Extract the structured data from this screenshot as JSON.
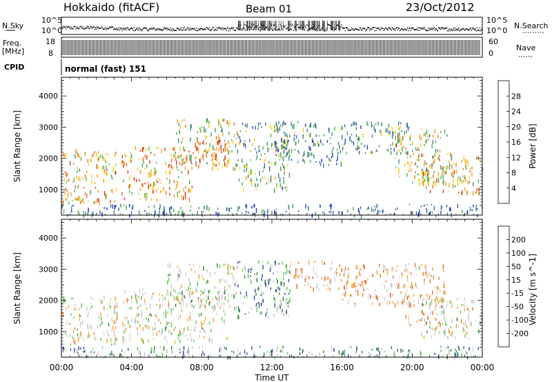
{
  "header": {
    "station": "Hokkaido (fitACF)",
    "beam": "Beam 01",
    "date": "23/Oct/2012"
  },
  "strips": {
    "nsky": {
      "label": "N.Sky",
      "ticks_left": [
        "10^5",
        "10^0"
      ],
      "ticks_right": [
        "10^5",
        "10^0"
      ],
      "right_label": "N.Search"
    },
    "freq": {
      "label_line1": "Freq.",
      "label_line2": "[MHz]",
      "ticks_left": [
        "18",
        "8"
      ],
      "ticks_right": [
        "60",
        "0"
      ],
      "right_label": "Nave"
    },
    "cpid": {
      "label": "CPID",
      "text": "normal (fast) 151"
    }
  },
  "colors": {
    "power": [
      "#0b22d8",
      "#2b48b0",
      "#3f6f9a",
      "#3f8f7a",
      "#4db04d",
      "#f0d020",
      "#f5a524",
      "#f26f1c",
      "#e0301a",
      "#d11a1a"
    ],
    "velocity": [
      "#1f2fa0",
      "#2a55a8",
      "#2f7a3a",
      "#5ac84a",
      "#c8c8c8",
      "#d0d0d0",
      "#f2a630",
      "#f07a1c",
      "#e84a1a",
      "#d41a14"
    ]
  },
  "chart_data": [
    {
      "type": "heatmap",
      "title": "",
      "xlabel": "",
      "ylabel": "Slant Range [km]",
      "x_ticks": [
        "00:00",
        "04:00",
        "08:00",
        "12:00",
        "16:00",
        "20:00",
        "00:00"
      ],
      "xlim_hours": [
        0,
        24
      ],
      "y_ticks": [
        1000,
        2000,
        3000,
        4000
      ],
      "ylim": [
        180,
        4600
      ],
      "colorbar": {
        "label": "Power [dB]",
        "ticks": [
          4,
          8,
          12,
          16,
          20,
          24,
          28
        ],
        "range": [
          0,
          32
        ]
      },
      "echo_regions": [
        {
          "t0": 0.0,
          "t1": 3.2,
          "r0": 600,
          "r1": 2300,
          "level": 0.62
        },
        {
          "t0": 3.4,
          "t1": 7.5,
          "r0": 700,
          "r1": 2400,
          "level": 0.66
        },
        {
          "t0": 6.5,
          "t1": 10.0,
          "r0": 1700,
          "r1": 3300,
          "level": 0.55
        },
        {
          "t0": 7.5,
          "t1": 9.5,
          "r0": 1800,
          "r1": 2600,
          "level": 0.78
        },
        {
          "t0": 10.0,
          "t1": 13.0,
          "r0": 1000,
          "r1": 3200,
          "level": 0.4
        },
        {
          "t0": 12.0,
          "t1": 16.0,
          "r0": 1800,
          "r1": 3200,
          "level": 0.3
        },
        {
          "t0": 16.0,
          "t1": 20.0,
          "r0": 2200,
          "r1": 3200,
          "level": 0.35
        },
        {
          "t0": 19.0,
          "t1": 22.0,
          "r0": 1200,
          "r1": 3000,
          "level": 0.55
        },
        {
          "t0": 20.5,
          "t1": 24.0,
          "r0": 900,
          "r1": 2200,
          "level": 0.6
        },
        {
          "t0": 0.0,
          "t1": 24.0,
          "r0": 200,
          "r1": 550,
          "level": 0.25
        }
      ]
    },
    {
      "type": "heatmap",
      "title": "",
      "xlabel": "Time UT",
      "ylabel": "Slant Range [km]",
      "x_ticks": [
        "00:00",
        "04:00",
        "08:00",
        "12:00",
        "16:00",
        "20:00",
        "00:00"
      ],
      "xlim_hours": [
        0,
        24
      ],
      "y_ticks": [
        1000,
        2000,
        3000,
        4000
      ],
      "ylim": [
        180,
        4600
      ],
      "colorbar": {
        "label": "Velocity [m s^-1]",
        "ticks": [
          200,
          100,
          50,
          15,
          -15,
          -50,
          -100,
          -200
        ],
        "range": [
          -250,
          250
        ]
      },
      "echo_regions": [
        {
          "t0": 0.0,
          "t1": 3.2,
          "r0": 600,
          "r1": 2200,
          "level": 0.52
        },
        {
          "t0": 3.4,
          "t1": 9.5,
          "r0": 700,
          "r1": 2400,
          "level": 0.5
        },
        {
          "t0": 6.0,
          "t1": 10.0,
          "r0": 1800,
          "r1": 3200,
          "level": 0.45
        },
        {
          "t0": 10.0,
          "t1": 13.0,
          "r0": 1500,
          "r1": 3300,
          "level": 0.3
        },
        {
          "t0": 13.0,
          "t1": 16.0,
          "r0": 2400,
          "r1": 3300,
          "level": 0.65
        },
        {
          "t0": 16.0,
          "t1": 20.0,
          "r0": 1900,
          "r1": 3200,
          "level": 0.65
        },
        {
          "t0": 19.5,
          "t1": 22.0,
          "r0": 1200,
          "r1": 3200,
          "level": 0.62
        },
        {
          "t0": 20.5,
          "t1": 24.0,
          "r0": 800,
          "r1": 2100,
          "level": 0.5
        },
        {
          "t0": 0.0,
          "t1": 24.0,
          "r0": 200,
          "r1": 550,
          "level": 0.3
        }
      ]
    }
  ]
}
